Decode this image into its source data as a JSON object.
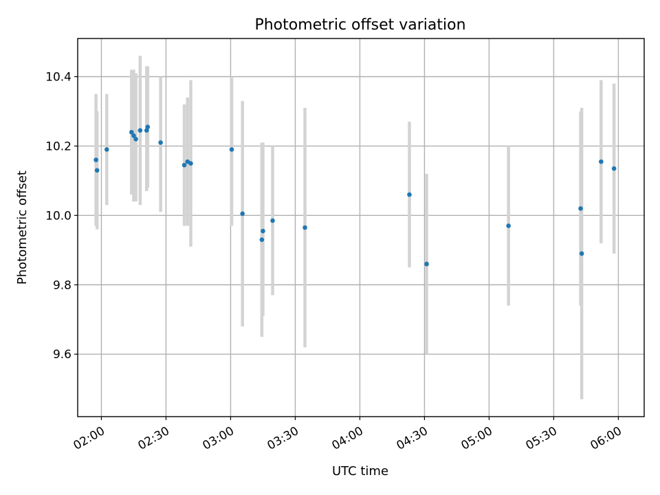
{
  "chart_data": {
    "type": "scatter",
    "title": "Photometric offset variation",
    "xlabel": "UTC time",
    "ylabel": "Photometric offset",
    "xlim": [
      "01:49",
      "06:12"
    ],
    "ylim": [
      9.42,
      10.51
    ],
    "x_ticks": [
      "02:00",
      "02:30",
      "03:00",
      "03:30",
      "04:00",
      "04:30",
      "05:00",
      "05:30",
      "06:00"
    ],
    "y_ticks": [
      9.6,
      9.8,
      10.0,
      10.2,
      10.4
    ],
    "grid": true,
    "errorbar_color": "#d3d3d3",
    "point_color": "#1f77b4",
    "points": [
      {
        "x": "01:57:30",
        "y": 10.16,
        "ylow": 9.97,
        "yhigh": 10.35
      },
      {
        "x": "01:58:00",
        "y": 10.13,
        "ylow": 9.96,
        "yhigh": 10.3
      },
      {
        "x": "02:02:30",
        "y": 10.19,
        "ylow": 10.03,
        "yhigh": 10.35
      },
      {
        "x": "02:14:00",
        "y": 10.24,
        "ylow": 10.06,
        "yhigh": 10.42
      },
      {
        "x": "02:15:00",
        "y": 10.23,
        "ylow": 10.04,
        "yhigh": 10.42
      },
      {
        "x": "02:16:00",
        "y": 10.22,
        "ylow": 10.04,
        "yhigh": 10.41
      },
      {
        "x": "02:18:00",
        "y": 10.245,
        "ylow": 10.03,
        "yhigh": 10.46
      },
      {
        "x": "02:21:00",
        "y": 10.245,
        "ylow": 10.07,
        "yhigh": 10.43
      },
      {
        "x": "02:21:30",
        "y": 10.255,
        "ylow": 10.08,
        "yhigh": 10.43
      },
      {
        "x": "02:27:30",
        "y": 10.21,
        "ylow": 10.01,
        "yhigh": 10.4
      },
      {
        "x": "02:38:30",
        "y": 10.145,
        "ylow": 9.97,
        "yhigh": 10.32
      },
      {
        "x": "02:40:00",
        "y": 10.155,
        "ylow": 9.97,
        "yhigh": 10.34
      },
      {
        "x": "02:41:30",
        "y": 10.15,
        "ylow": 9.91,
        "yhigh": 10.39
      },
      {
        "x": "03:00:30",
        "y": 10.19,
        "ylow": 9.97,
        "yhigh": 10.4
      },
      {
        "x": "03:05:30",
        "y": 10.005,
        "ylow": 9.68,
        "yhigh": 10.33
      },
      {
        "x": "03:14:30",
        "y": 9.93,
        "ylow": 9.65,
        "yhigh": 10.21
      },
      {
        "x": "03:15:00",
        "y": 9.955,
        "ylow": 9.71,
        "yhigh": 10.21
      },
      {
        "x": "03:19:30",
        "y": 9.985,
        "ylow": 9.77,
        "yhigh": 10.2
      },
      {
        "x": "03:34:30",
        "y": 9.965,
        "ylow": 9.62,
        "yhigh": 10.31
      },
      {
        "x": "04:23:00",
        "y": 10.06,
        "ylow": 9.85,
        "yhigh": 10.27
      },
      {
        "x": "04:31:00",
        "y": 9.86,
        "ylow": 9.6,
        "yhigh": 10.12
      },
      {
        "x": "05:09:00",
        "y": 9.97,
        "ylow": 9.74,
        "yhigh": 10.2
      },
      {
        "x": "05:42:30",
        "y": 10.02,
        "ylow": 9.74,
        "yhigh": 10.3
      },
      {
        "x": "05:43:00",
        "y": 9.89,
        "ylow": 9.47,
        "yhigh": 10.31
      },
      {
        "x": "05:52:00",
        "y": 10.155,
        "ylow": 9.92,
        "yhigh": 10.39
      },
      {
        "x": "05:58:00",
        "y": 10.135,
        "ylow": 9.89,
        "yhigh": 10.38
      }
    ]
  }
}
